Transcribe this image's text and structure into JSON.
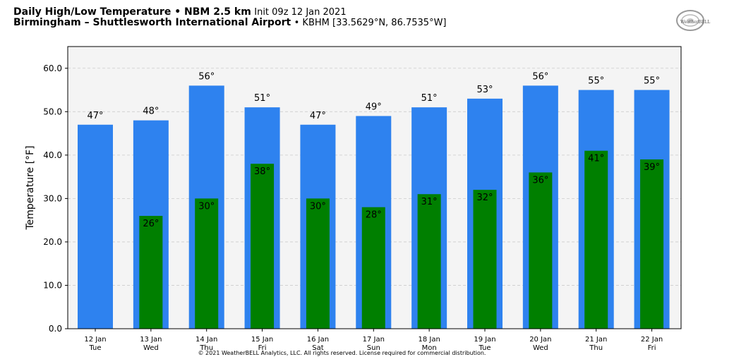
{
  "header": {
    "title_bold": "Daily High/Low Temperature • NBM 2.5 km",
    "title_init": "Init 09z 12 Jan 2021",
    "location_bold": "Birmingham – Shuttlesworth International Airport",
    "location_detail": "• KBHM [33.5629°N, 86.7535°W]"
  },
  "logo": {
    "text": "WeatherBELL",
    "icon": "weatherbell-logo"
  },
  "copyright": "© 2021 WeatherBELL Analytics, LLC. All rights reserved. License required for commercial distribution.",
  "chart_data": {
    "type": "bar",
    "categories": [
      "12 Jan",
      "13 Jan",
      "14 Jan",
      "15 Jan",
      "16 Jan",
      "17 Jan",
      "18 Jan",
      "19 Jan",
      "20 Jan",
      "21 Jan",
      "22 Jan"
    ],
    "weekdays": [
      "Tue",
      "Wed",
      "Thu",
      "Fri",
      "Sat",
      "Sun",
      "Mon",
      "Tue",
      "Wed",
      "Thu",
      "Fri"
    ],
    "series": [
      {
        "name": "High",
        "values": [
          47,
          48,
          56,
          51,
          47,
          49,
          51,
          53,
          56,
          55,
          55
        ],
        "labels": [
          "47°",
          "48°",
          "56°",
          "51°",
          "47°",
          "49°",
          "51°",
          "53°",
          "56°",
          "55°",
          "55°"
        ],
        "color": "#2e82ef"
      },
      {
        "name": "Low",
        "values": [
          null,
          26,
          30,
          38,
          30,
          28,
          31,
          32,
          36,
          41,
          39
        ],
        "labels": [
          "",
          "26°",
          "30°",
          "38°",
          "30°",
          "28°",
          "31°",
          "32°",
          "36°",
          "41°",
          "39°"
        ],
        "color": "#007f00"
      }
    ],
    "ylabel": "Temperature [°F]",
    "ylim": [
      0,
      65
    ],
    "yticks": [
      0,
      10,
      20,
      30,
      40,
      50,
      60
    ],
    "ytick_labels": [
      "0.0",
      "10.0",
      "20.0",
      "30.0",
      "40.0",
      "50.0",
      "60.0"
    ],
    "grid": true,
    "plot_background": "#f4f4f4"
  }
}
